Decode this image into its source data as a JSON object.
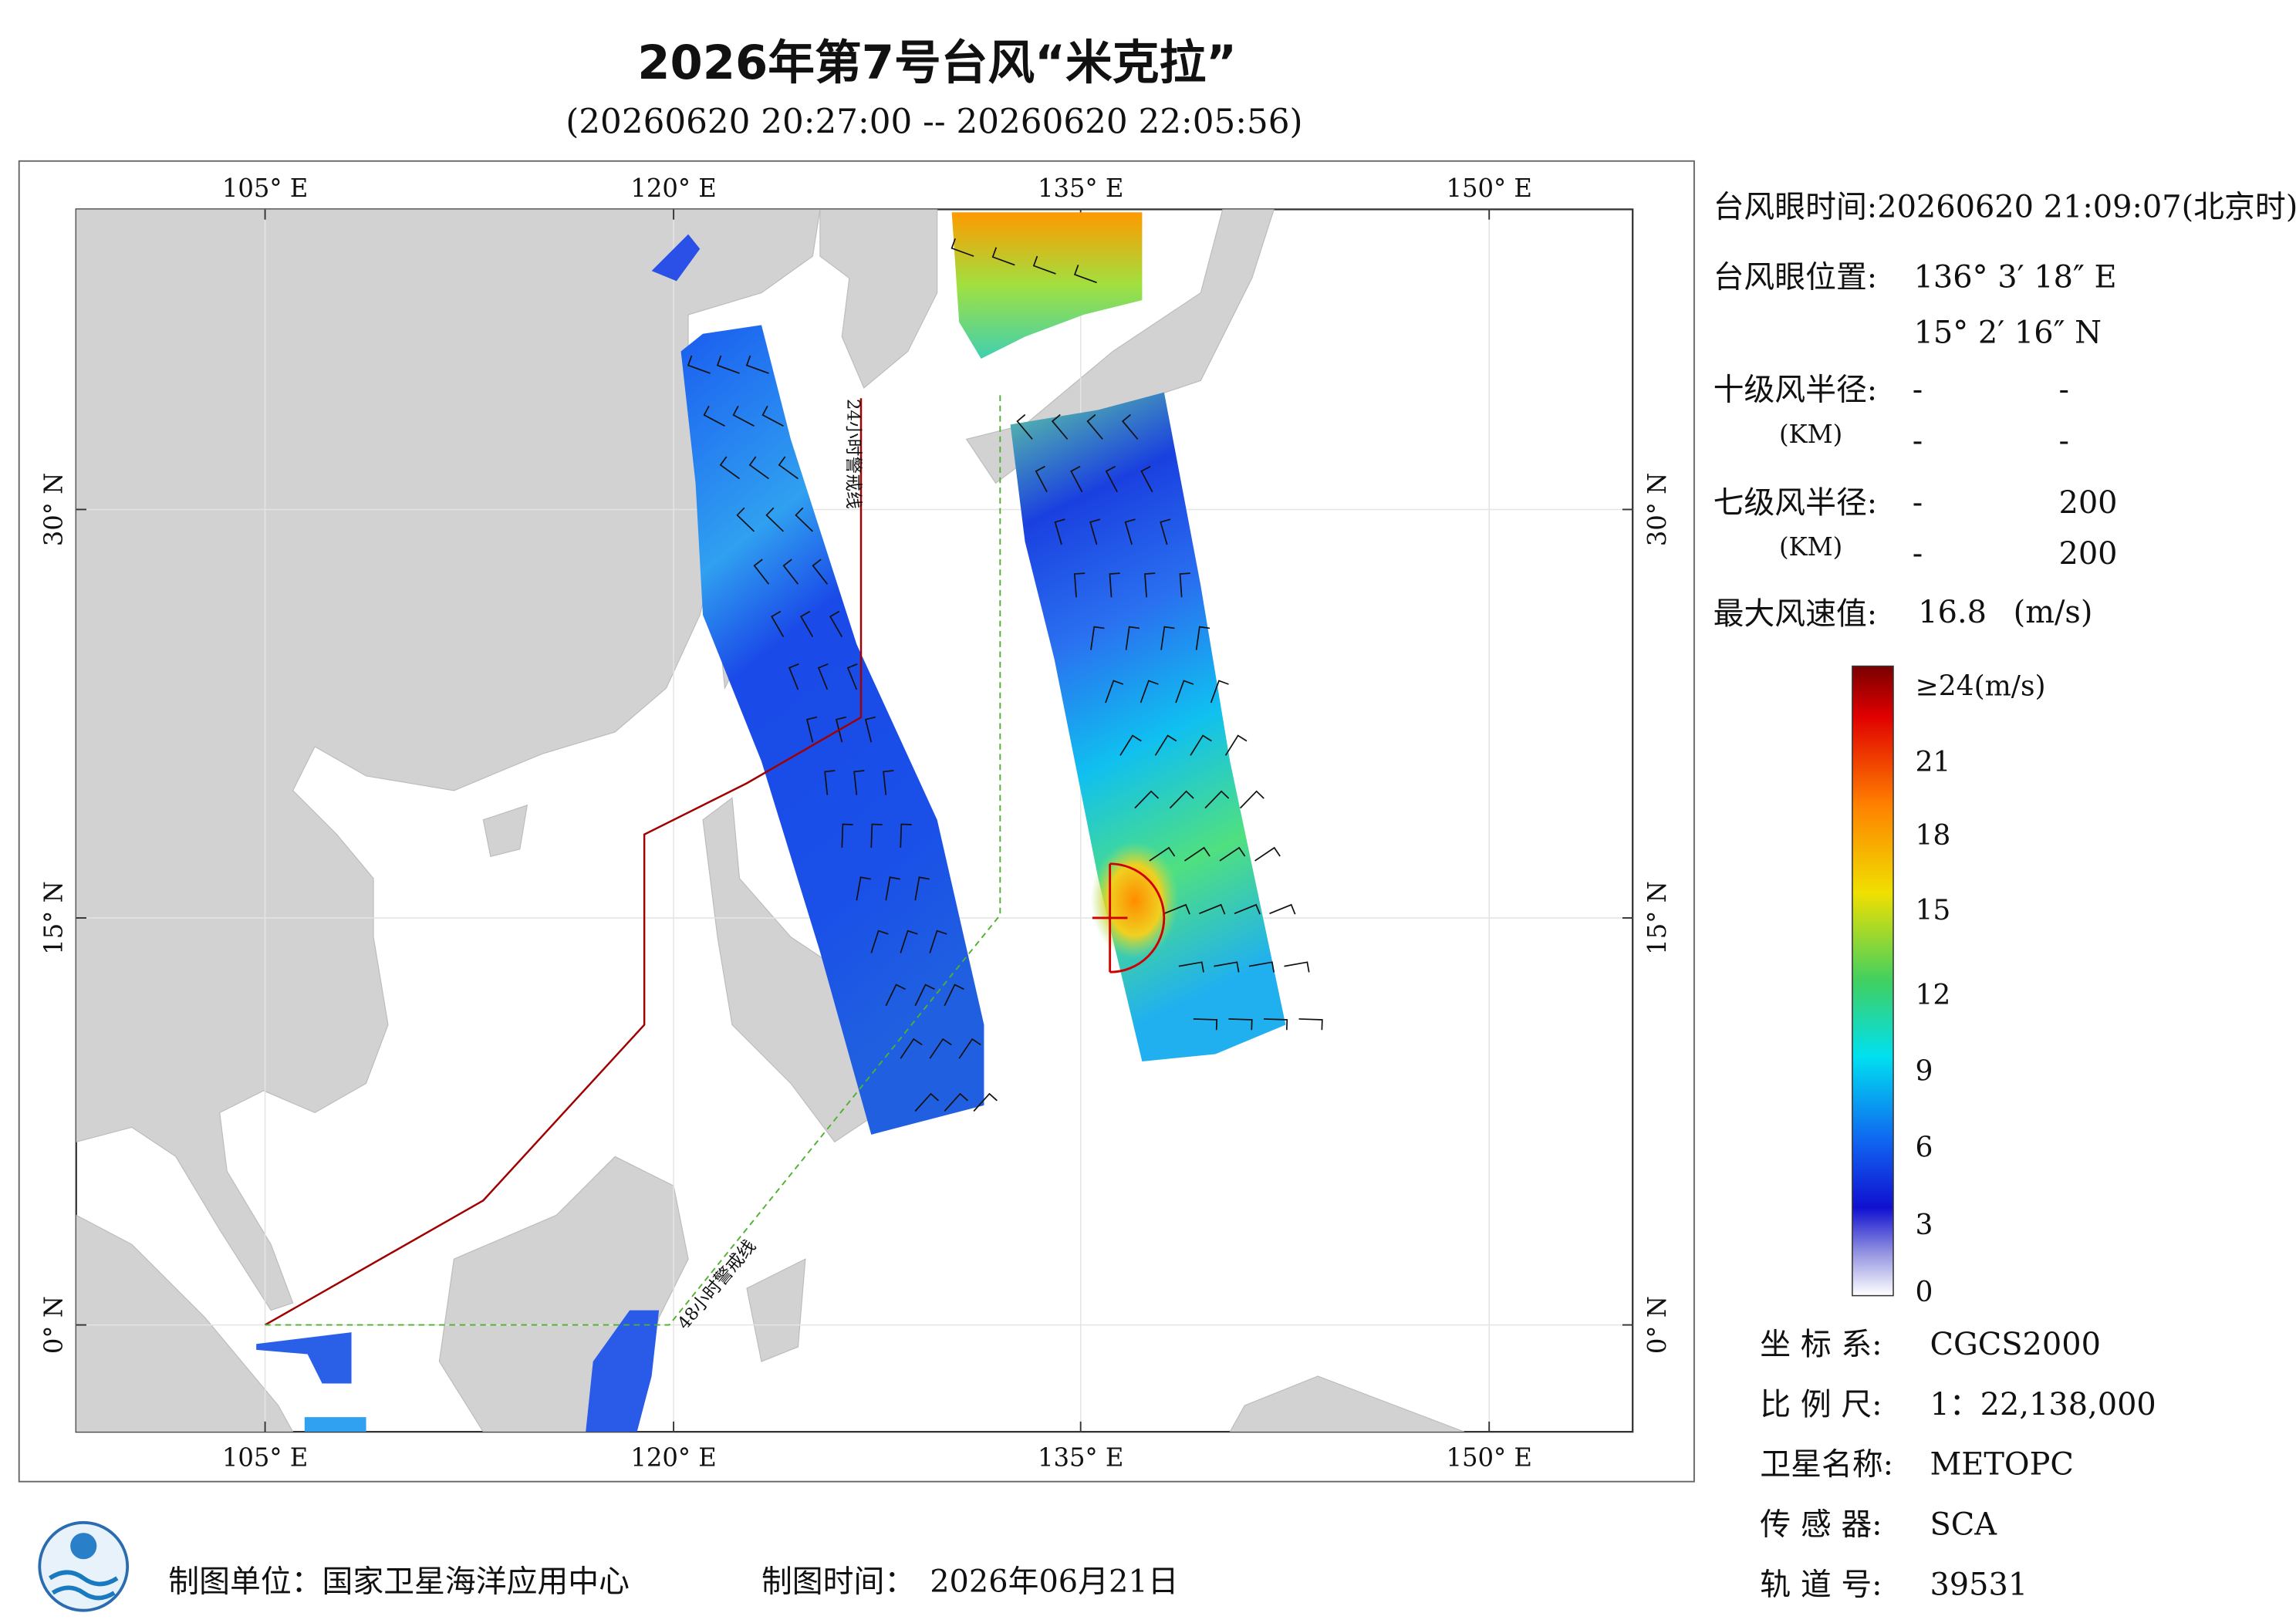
{
  "header": {
    "title": "2026年第7号台风“米克拉”",
    "subtitle": "(20260620 20:27:00 -- 20260620 22:05:56)"
  },
  "map": {
    "lon_labels": [
      "105° E",
      "120° E",
      "135° E",
      "150° E"
    ],
    "lat_labels": [
      "30° N",
      "15° N",
      "0° N"
    ],
    "warning_24h": "24小时警戒线",
    "warning_48h": "48小时警戒线"
  },
  "info": {
    "eye_time": "台风眼时间:20260620 21:09:07(北京时)",
    "eye_position_label": "台风眼位置:",
    "eye_lon": "136° 3′ 18″ E",
    "eye_lat": "15° 2′ 16″ N",
    "r10_label": "十级风半径:",
    "r10_unit": "(KM)",
    "r10_values": [
      "-",
      "-",
      "-",
      "-"
    ],
    "r7_label": "七级风半径:",
    "r7_unit": "(KM)",
    "r7_values": [
      "-",
      "200",
      "-",
      "200"
    ],
    "max_wind_label": "最大风速值:",
    "max_wind": "16.8",
    "max_wind_unit": "(m/s)"
  },
  "colorbar": {
    "labels": [
      "≥24(m/s)",
      "21",
      "18",
      "15",
      "12",
      "9",
      "6",
      "3",
      "0"
    ]
  },
  "meta": {
    "rows": [
      [
        "坐 标 系:",
        "CGCS2000"
      ],
      [
        "比 例 尺:",
        "1：22,138,000"
      ],
      [
        "卫星名称:",
        "METOPC"
      ],
      [
        "传 感 器:",
        "SCA"
      ],
      [
        "轨 道 号:",
        "39531"
      ]
    ]
  },
  "footer": {
    "unit": "制图单位：国家卫星海洋应用中心",
    "time_label": "制图时间：",
    "time": "2026年06月21日"
  }
}
